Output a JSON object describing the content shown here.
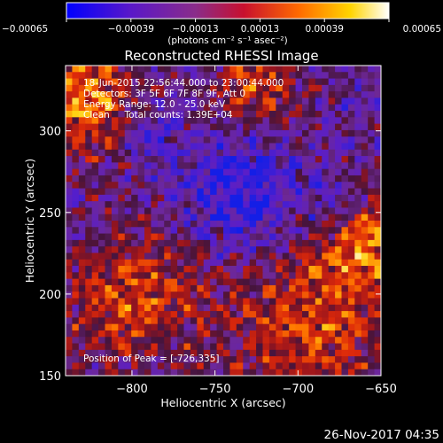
{
  "chart_data": {
    "type": "heatmap",
    "title": "Reconstructed RHESSI Image",
    "xlabel": "Heliocentric X (arcsec)",
    "ylabel": "Heliocentric Y (arcsec)",
    "xlim": [
      -840,
      -650
    ],
    "ylim": [
      150,
      340
    ],
    "xticks": [
      -800,
      -750,
      -700,
      -650
    ],
    "xtick_labels": [
      "−800",
      "−750",
      "−700",
      "−650"
    ],
    "yticks": [
      150,
      200,
      250,
      300
    ],
    "ytick_labels": [
      "150",
      "200",
      "250",
      "300"
    ],
    "colorbar": {
      "range": [
        -0.00065,
        0.00065
      ],
      "ticks": [
        -0.00065,
        -0.00039,
        -0.00013,
        0.00013,
        0.00039,
        0.00065
      ],
      "tick_labels": [
        "−0.00065",
        "−0.00039",
        "−0.00013",
        "0.00013",
        "0.00039",
        "0.00065"
      ],
      "label": "(photons cm⁻² s⁻¹ asec⁻²)",
      "colors": [
        "#0000ff",
        "#6a1fb0",
        "#8a2c8a",
        "#c8102e",
        "#ff6a00",
        "#ffd400",
        "#ffffff"
      ]
    },
    "annotations": [
      "18-Jun-2015 22:56:44.000 to 23:00:44.000",
      "Detectors: 3F 5F 6F 7F 8F 9F, Att 0",
      "Energy Range: 12.0 - 25.0 keV",
      "Clean     Total counts: 1.39E+04"
    ],
    "peak_label": "Position of Peak = [-726,335]",
    "peak": [
      -726,
      335
    ],
    "grid": false
  },
  "footer": {
    "date": "26-Nov-2017 04:35"
  }
}
